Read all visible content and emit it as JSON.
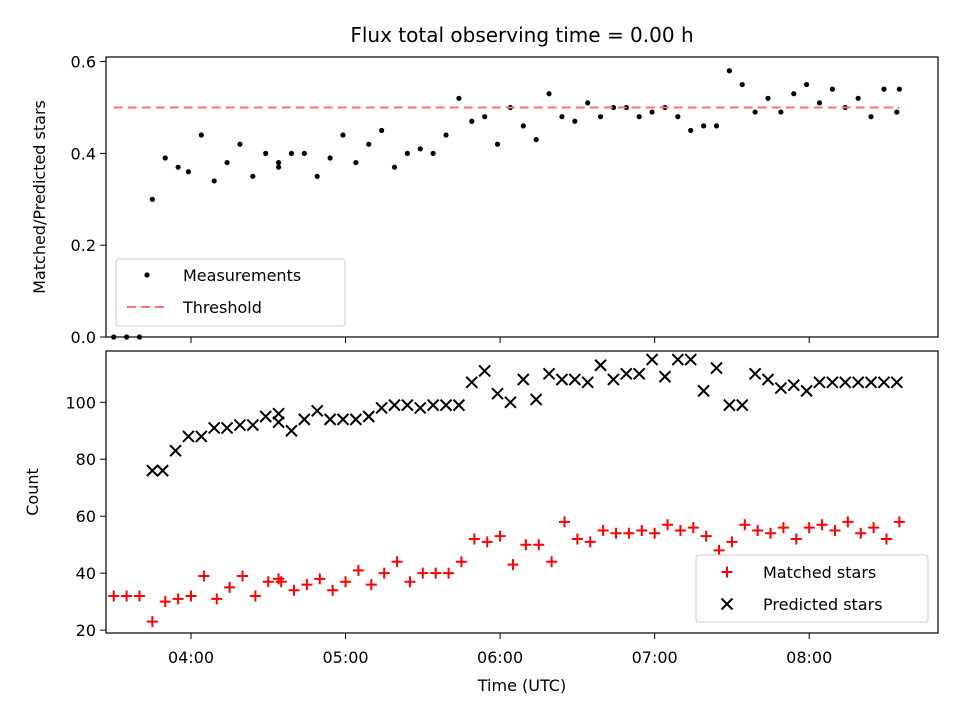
{
  "figure": {
    "title": "Flux total observing time = 0.00 h",
    "xlabel": "Time (UTC)",
    "xticks": [
      "04:00",
      "05:00",
      "06:00",
      "07:00",
      "08:00"
    ]
  },
  "chart_data": [
    {
      "type": "scatter",
      "ylabel": "Matched/Predicted stars",
      "ylim": [
        0,
        0.61
      ],
      "yticks": [
        0.0,
        0.2,
        0.4,
        0.6
      ],
      "ytick_labels": [
        "0.0",
        "0.2",
        "0.4",
        "0.6"
      ],
      "xlim": [
        "03:27",
        "08:50"
      ],
      "grid": false,
      "legend_position": "lower-left",
      "series": [
        {
          "name": "Measurements",
          "kind": "points",
          "color": "#000000",
          "x": [
            "03:30",
            "03:35",
            "03:40",
            "03:45",
            "03:50",
            "03:55",
            "03:59",
            "04:04",
            "04:09",
            "04:14",
            "04:19",
            "04:24",
            "04:29",
            "04:34",
            "04:34",
            "04:39",
            "04:44",
            "04:49",
            "04:54",
            "04:59",
            "05:04",
            "05:09",
            "05:14",
            "05:19",
            "05:24",
            "05:29",
            "05:34",
            "05:39",
            "05:44",
            "05:49",
            "05:54",
            "05:59",
            "06:04",
            "06:09",
            "06:14",
            "06:19",
            "06:24",
            "06:29",
            "06:34",
            "06:39",
            "06:44",
            "06:49",
            "06:54",
            "06:59",
            "07:04",
            "07:09",
            "07:14",
            "07:19",
            "07:24",
            "07:29",
            "07:34",
            "07:39",
            "07:44",
            "07:49",
            "07:54",
            "07:59",
            "08:04",
            "08:09",
            "08:14",
            "08:19",
            "08:24",
            "08:29",
            "08:34",
            "08:35"
          ],
          "y": [
            0.0,
            0.0,
            0.0,
            0.3,
            0.39,
            0.37,
            0.36,
            0.44,
            0.34,
            0.38,
            0.42,
            0.35,
            0.4,
            0.38,
            0.37,
            0.4,
            0.4,
            0.35,
            0.39,
            0.44,
            0.38,
            0.42,
            0.45,
            0.37,
            0.4,
            0.41,
            0.4,
            0.44,
            0.52,
            0.47,
            0.48,
            0.42,
            0.5,
            0.46,
            0.43,
            0.53,
            0.48,
            0.47,
            0.51,
            0.48,
            0.5,
            0.5,
            0.48,
            0.49,
            0.5,
            0.48,
            0.45,
            0.46,
            0.46,
            0.58,
            0.55,
            0.49,
            0.52,
            0.49,
            0.53,
            0.55,
            0.51,
            0.54,
            0.5,
            0.52,
            0.48,
            0.54,
            0.49,
            0.54
          ]
        },
        {
          "name": "Threshold",
          "kind": "dashed-line",
          "color": "#ff7070",
          "x": [
            "03:30",
            "08:35"
          ],
          "y": [
            0.5,
            0.5
          ]
        }
      ]
    },
    {
      "type": "scatter",
      "ylabel": "Count",
      "ylim": [
        19,
        118
      ],
      "yticks": [
        20,
        40,
        60,
        80,
        100
      ],
      "ytick_labels": [
        "20",
        "40",
        "60",
        "80",
        "100"
      ],
      "xlim": [
        "03:27",
        "08:50"
      ],
      "grid": false,
      "legend_position": "lower-right",
      "series": [
        {
          "name": "Matched stars",
          "marker": "plus",
          "color": "#ff0000",
          "x": [
            "03:30",
            "03:35",
            "03:40",
            "03:45",
            "03:50",
            "03:55",
            "04:00",
            "04:05",
            "04:10",
            "04:15",
            "04:20",
            "04:25",
            "04:30",
            "04:34",
            "04:35",
            "04:40",
            "04:45",
            "04:50",
            "04:55",
            "05:00",
            "05:05",
            "05:10",
            "05:15",
            "05:20",
            "05:25",
            "05:30",
            "05:35",
            "05:40",
            "05:45",
            "05:50",
            "05:55",
            "06:00",
            "06:05",
            "06:10",
            "06:15",
            "06:20",
            "06:25",
            "06:30",
            "06:35",
            "06:40",
            "06:45",
            "06:50",
            "06:55",
            "07:00",
            "07:05",
            "07:10",
            "07:15",
            "07:20",
            "07:25",
            "07:30",
            "07:35",
            "07:40",
            "07:45",
            "07:50",
            "07:55",
            "08:00",
            "08:05",
            "08:10",
            "08:15",
            "08:20",
            "08:25",
            "08:30",
            "08:35"
          ],
          "y": [
            32,
            32,
            32,
            23,
            30,
            31,
            32,
            39,
            31,
            35,
            39,
            32,
            37,
            38,
            37,
            34,
            36,
            38,
            34,
            37,
            41,
            36,
            40,
            44,
            37,
            40,
            40,
            40,
            44,
            52,
            51,
            53,
            43,
            50,
            50,
            44,
            58,
            52,
            51,
            55,
            54,
            54,
            55,
            54,
            57,
            55,
            56,
            53,
            48,
            51,
            57,
            55,
            54,
            56,
            52,
            56,
            57,
            55,
            58,
            54,
            56,
            52,
            58
          ]
        },
        {
          "name": "Predicted stars",
          "marker": "x",
          "color": "#000000",
          "x": [
            "03:45",
            "03:49",
            "03:54",
            "03:59",
            "04:04",
            "04:09",
            "04:14",
            "04:19",
            "04:24",
            "04:29",
            "04:34",
            "04:34",
            "04:39",
            "04:44",
            "04:49",
            "04:54",
            "04:59",
            "05:04",
            "05:09",
            "05:14",
            "05:19",
            "05:24",
            "05:29",
            "05:34",
            "05:39",
            "05:44",
            "05:49",
            "05:54",
            "05:59",
            "06:04",
            "06:09",
            "06:14",
            "06:19",
            "06:24",
            "06:29",
            "06:34",
            "06:39",
            "06:44",
            "06:49",
            "06:54",
            "06:59",
            "07:04",
            "07:09",
            "07:14",
            "07:19",
            "07:24",
            "07:29",
            "07:34",
            "07:39",
            "07:44",
            "07:49",
            "07:54",
            "07:59",
            "08:04",
            "08:09",
            "08:14",
            "08:19",
            "08:24",
            "08:29",
            "08:34"
          ],
          "y": [
            76,
            76,
            83,
            88,
            88,
            91,
            91,
            92,
            92,
            95,
            96,
            93,
            90,
            94,
            97,
            94,
            94,
            94,
            95,
            98,
            99,
            99,
            98,
            99,
            99,
            99,
            107,
            111,
            103,
            100,
            108,
            101,
            110,
            108,
            108,
            107,
            113,
            108,
            110,
            110,
            115,
            109,
            115,
            115,
            104,
            112,
            99,
            99,
            110,
            108,
            105,
            106,
            104,
            107,
            107,
            107,
            107,
            107,
            107,
            107
          ]
        }
      ]
    }
  ]
}
